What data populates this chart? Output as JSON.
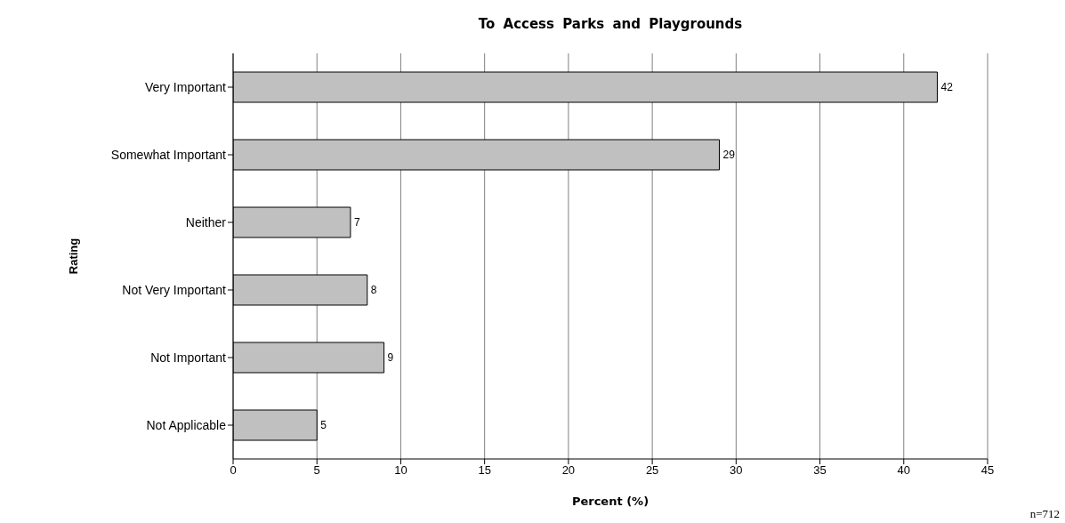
{
  "chart_data": {
    "type": "bar",
    "orientation": "horizontal",
    "title": "To Access Parks and Playgrounds",
    "xlabel": "Percent (%)",
    "ylabel": "Rating",
    "categories": [
      "Very Important",
      "Somewhat Important",
      "Neither",
      "Not Very Important",
      "Not Important",
      "Not Applicable"
    ],
    "values": [
      42,
      29,
      7,
      8,
      9,
      5
    ],
    "color": "#c0c0c0",
    "xlim": [
      0,
      45
    ],
    "xticks": [
      0,
      5,
      10,
      15,
      20,
      25,
      30,
      35,
      40,
      45
    ],
    "grid": "x",
    "data_labels": true,
    "annotations": [
      "n=712"
    ]
  }
}
